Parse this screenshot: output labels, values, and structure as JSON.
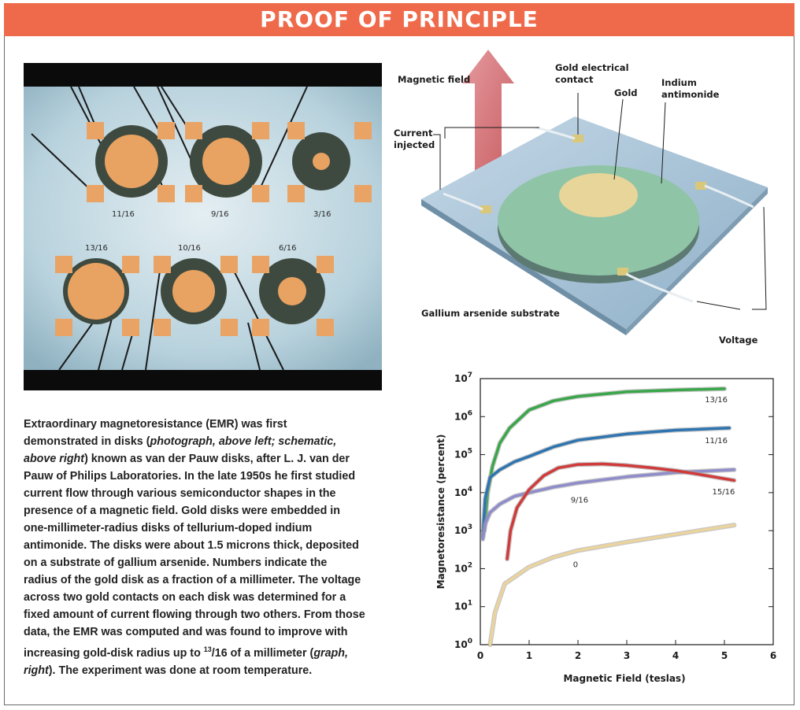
{
  "banner": {
    "title": "PROOF OF PRINCIPLE"
  },
  "photo": {
    "disk_labels": [
      "11/16",
      "9/16",
      "3/16",
      "13/16",
      "10/16",
      "6/16"
    ],
    "colors": {
      "background": "#c8dde6",
      "gold": "#e8a261",
      "indium": "#3e4a40",
      "border": "#0b0b0b"
    }
  },
  "schematic": {
    "labels": {
      "magnetic_field": "Magnetic field",
      "gold_contact_1": "Gold electrical",
      "gold_contact_2": "contact",
      "gold": "Gold",
      "indium_1": "Indium",
      "indium_2": "antimonide",
      "current_1": "Current",
      "current_2": "injected",
      "substrate": "Gallium arsenide substrate",
      "voltage": "Voltage"
    },
    "colors": {
      "arrow": "#d46a6f",
      "substrate": "#a7c4d8",
      "disk": "#8fc4a6",
      "gold": "#e8d59a"
    }
  },
  "description": {
    "line1": "Extraordinary magnetoresistance (EMR) was first",
    "line2": "demonstrated in disks (",
    "line2_i": "photograph, above left; schematic,",
    "line3_i": "above right",
    "line3": ") known as van der Pauw disks, after L. J. van der",
    "line4": "Pauw of Philips Laboratories. In the late 1950s he first studied",
    "line5": "current flow through various semiconductor shapes in the",
    "line6": "presence of a magnetic field. Gold disks were embedded in",
    "line7": "one-millimeter-radius disks of tellurium-doped indium",
    "line8": "antimonide. The disks were about 1.5 microns thick, deposited",
    "line9": "on a substrate of gallium arsenide. Numbers indicate the",
    "line10": "radius of the gold disk as a fraction of a millimeter. The voltage",
    "line11": "across two gold contacts on each disk was determined for a",
    "line12": "fixed amount of current flowing through two others. From those",
    "line13": "data, the EMR was computed and was found to improve with",
    "line14a": "increasing gold-disk radius up to ",
    "line14_sup": "13",
    "line14b": "/16 of a millimeter (",
    "line14_i": "graph,",
    "line15_i": "right",
    "line15": "). The experiment was done at room temperature."
  },
  "chart_data": {
    "type": "line",
    "title": "",
    "xlabel": "Magnetic Field (teslas)",
    "ylabel": "Magnetoresistance (percent)",
    "xlim": [
      0,
      6
    ],
    "ylim_log10": [
      0,
      7
    ],
    "x_ticks": [
      "0",
      "1",
      "2",
      "3",
      "4",
      "5",
      "6"
    ],
    "y_ticks_base": "10",
    "y_ticks_exp": [
      "0",
      "1",
      "2",
      "3",
      "4",
      "5",
      "6",
      "7"
    ],
    "series": [
      {
        "name": "13/16",
        "color": "#3aa64a",
        "x": [
          0.08,
          0.15,
          0.25,
          0.4,
          0.6,
          1,
          1.5,
          2,
          3,
          4,
          5
        ],
        "y": [
          1000,
          10000,
          50000,
          200000,
          500000,
          1500000,
          2600000,
          3400000,
          4500000,
          5000000,
          5400000
        ]
      },
      {
        "name": "11/16",
        "color": "#2e74b0",
        "x": [
          0.05,
          0.1,
          0.2,
          0.4,
          0.7,
          1,
          1.5,
          2,
          3,
          4,
          5.1
        ],
        "y": [
          700,
          7000,
          25000,
          40000,
          65000,
          90000,
          160000,
          240000,
          350000,
          440000,
          500000
        ]
      },
      {
        "name": "9/16",
        "color": "#8f8ccb",
        "x": [
          0.05,
          0.1,
          0.2,
          0.4,
          0.7,
          1,
          1.5,
          2,
          3,
          4,
          5.2
        ],
        "y": [
          600,
          1500,
          3000,
          5000,
          8000,
          10000,
          14000,
          18000,
          26000,
          34000,
          40000
        ]
      },
      {
        "name": "15/16",
        "color": "#d03a3a",
        "x": [
          0.55,
          0.62,
          0.75,
          1,
          1.3,
          1.6,
          2,
          2.5,
          3,
          3.5,
          4,
          4.5,
          5.2
        ],
        "y": [
          180,
          1000,
          4000,
          12000,
          28000,
          45000,
          55000,
          57000,
          52000,
          45000,
          38000,
          30000,
          21000
        ]
      },
      {
        "name": "0",
        "color": "#ebd49c",
        "x": [
          0.2,
          0.3,
          0.5,
          1,
          1.5,
          2,
          3,
          4,
          5.2
        ],
        "y": [
          1,
          7,
          40,
          110,
          200,
          300,
          500,
          800,
          1400
        ]
      }
    ]
  }
}
